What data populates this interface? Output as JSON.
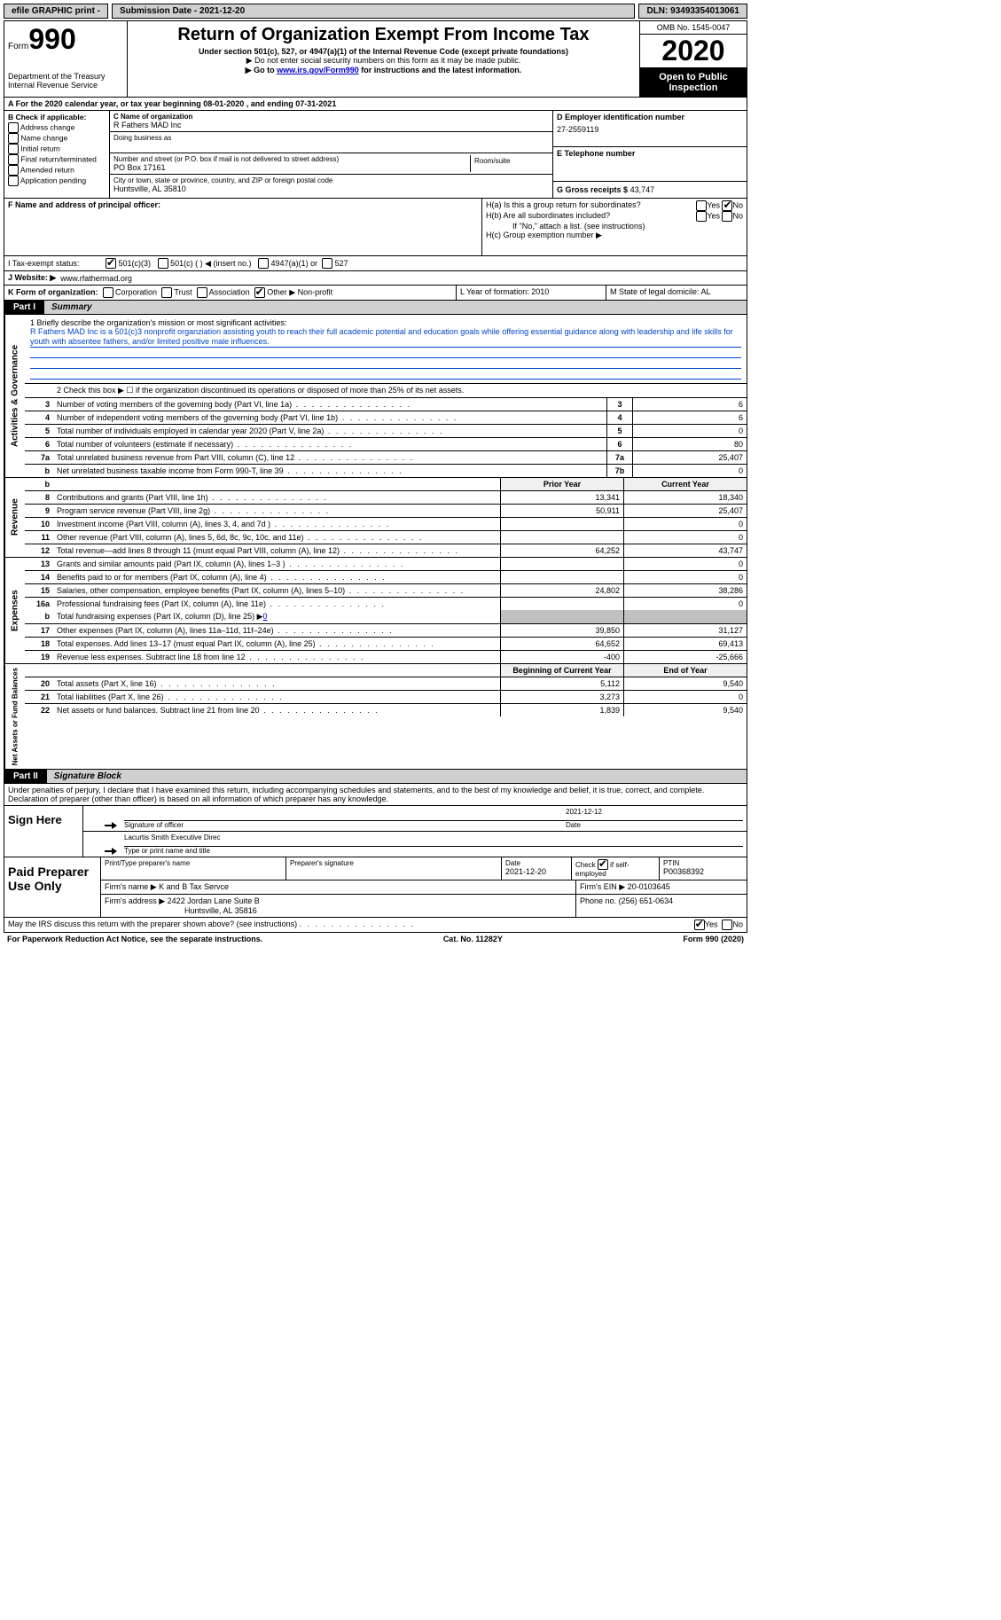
{
  "topbar": {
    "efile": "efile GRAPHIC print -",
    "submission": "Submission Date - 2021-12-20",
    "dln": "DLN: 93493354013061"
  },
  "header": {
    "form_label": "Form",
    "form_number": "990",
    "dept1": "Department of the Treasury",
    "dept2": "Internal Revenue Service",
    "title": "Return of Organization Exempt From Income Tax",
    "subtitle": "Under section 501(c), 527, or 4947(a)(1) of the Internal Revenue Code (except private foundations)",
    "note1": "▶ Do not enter social security numbers on this form as it may be made public.",
    "note2_pre": "▶ Go to ",
    "note2_link": "www.irs.gov/Form990",
    "note2_post": " for instructions and the latest information.",
    "omb": "OMB No. 1545-0047",
    "year": "2020",
    "open": "Open to Public Inspection"
  },
  "line_a": "A For the 2020 calendar year, or tax year beginning 08-01-2020    , and ending 07-31-2021",
  "col_b": {
    "heading": "B Check if applicable:",
    "items": [
      "Address change",
      "Name change",
      "Initial return",
      "Final return/terminated",
      "Amended return",
      "Application pending"
    ]
  },
  "col_c": {
    "name_label": "C Name of organization",
    "name": "R Fathers MAD Inc",
    "dba": "Doing business as",
    "street_label": "Number and street (or P.O. box if mail is not delivered to street address)",
    "room_label": "Room/suite",
    "street": "PO Box 17161",
    "city_label": "City or town, state or province, country, and ZIP or foreign postal code",
    "city": "Huntsville, AL  35810"
  },
  "col_d": {
    "ein_label": "D Employer identification number",
    "ein": "27-2559119",
    "phone_label": "E Telephone number",
    "phone": "",
    "gross_label": "G Gross receipts $",
    "gross": "43,747"
  },
  "f": {
    "label": "F Name and address of principal officer:",
    "value": ""
  },
  "h": {
    "a": "H(a)  Is this a group return for subordinates?",
    "b": "H(b)  Are all subordinates included?",
    "b_note": "If \"No,\" attach a list. (see instructions)",
    "c": "H(c)  Group exemption number ▶",
    "yes": "Yes",
    "no": "No"
  },
  "i": {
    "label": "I    Tax-exempt status:",
    "opt1": "501(c)(3)",
    "opt2": "501(c) (  ) ◀ (insert no.)",
    "opt3": "4947(a)(1) or",
    "opt4": "527"
  },
  "j": {
    "label": "J    Website: ▶",
    "value": "www.rfathermad.org"
  },
  "k": {
    "label": "K Form of organization:",
    "corp": "Corporation",
    "trust": "Trust",
    "assoc": "Association",
    "other": "Other ▶",
    "other_val": "Non-profit",
    "l": "L Year of formation: 2010",
    "m": "M State of legal domicile: AL"
  },
  "part1": {
    "label": "Part I",
    "title": "Summary"
  },
  "mission": {
    "q": "1   Briefly describe the organization's mission or most significant activities:",
    "text": "R Fathers MAD Inc is a 501(c)3 nonprofit organziation assisting youth to reach their full academic potential and education goals while offering essential guidance along with leadership and life skills for youth with absentee fathers, and/or limited positive male influences."
  },
  "gov": {
    "line2": "2    Check this box ▶ ☐  if the organization discontinued its operations or disposed of more than 25% of its net assets.",
    "rows": [
      {
        "n": "3",
        "d": "Number of voting members of the governing body (Part VI, line 1a)",
        "c": "3",
        "v": "6"
      },
      {
        "n": "4",
        "d": "Number of independent voting members of the governing body (Part VI, line 1b)",
        "c": "4",
        "v": "6"
      },
      {
        "n": "5",
        "d": "Total number of individuals employed in calendar year 2020 (Part V, line 2a)",
        "c": "5",
        "v": "0"
      },
      {
        "n": "6",
        "d": "Total number of volunteers (estimate if necessary)",
        "c": "6",
        "v": "80"
      },
      {
        "n": "7a",
        "d": "Total unrelated business revenue from Part VIII, column (C), line 12",
        "c": "7a",
        "v": "25,407"
      },
      {
        "n": "b",
        "d": "Net unrelated business taxable income from Form 990-T, line 39",
        "c": "7b",
        "v": "0"
      }
    ]
  },
  "prior_header": "Prior Year",
  "current_header": "Current Year",
  "revenue": [
    {
      "n": "8",
      "d": "Contributions and grants (Part VIII, line 1h)",
      "p": "13,341",
      "c": "18,340"
    },
    {
      "n": "9",
      "d": "Program service revenue (Part VIII, line 2g)",
      "p": "50,911",
      "c": "25,407"
    },
    {
      "n": "10",
      "d": "Investment income (Part VIII, column (A), lines 3, 4, and 7d )",
      "p": "",
      "c": "0"
    },
    {
      "n": "11",
      "d": "Other revenue (Part VIII, column (A), lines 5, 6d, 8c, 9c, 10c, and 11e)",
      "p": "",
      "c": "0"
    },
    {
      "n": "12",
      "d": "Total revenue—add lines 8 through 11 (must equal Part VIII, column (A), line 12)",
      "p": "64,252",
      "c": "43,747"
    }
  ],
  "expenses": [
    {
      "n": "13",
      "d": "Grants and similar amounts paid (Part IX, column (A), lines 1–3 )",
      "p": "",
      "c": "0"
    },
    {
      "n": "14",
      "d": "Benefits paid to or for members (Part IX, column (A), line 4)",
      "p": "",
      "c": "0"
    },
    {
      "n": "15",
      "d": "Salaries, other compensation, employee benefits (Part IX, column (A), lines 5–10)",
      "p": "24,802",
      "c": "38,286"
    },
    {
      "n": "16a",
      "d": "Professional fundraising fees (Part IX, column (A), line 11e)",
      "p": "",
      "c": "0"
    }
  ],
  "exp16b": {
    "n": "b",
    "d": "Total fundraising expenses (Part IX, column (D), line 25) ▶",
    "v": "0"
  },
  "expenses2": [
    {
      "n": "17",
      "d": "Other expenses (Part IX, column (A), lines 11a–11d, 11f–24e)",
      "p": "39,850",
      "c": "31,127"
    },
    {
      "n": "18",
      "d": "Total expenses. Add lines 13–17 (must equal Part IX, column (A), line 25)",
      "p": "64,652",
      "c": "69,413"
    },
    {
      "n": "19",
      "d": "Revenue less expenses. Subtract line 18 from line 12",
      "p": "-400",
      "c": "-25,666"
    }
  ],
  "bcy_header": "Beginning of Current Year",
  "eoy_header": "End of Year",
  "netassets": [
    {
      "n": "20",
      "d": "Total assets (Part X, line 16)",
      "p": "5,112",
      "c": "9,540"
    },
    {
      "n": "21",
      "d": "Total liabilities (Part X, line 26)",
      "p": "3,273",
      "c": "0"
    },
    {
      "n": "22",
      "d": "Net assets or fund balances. Subtract line 21 from line 20",
      "p": "1,839",
      "c": "9,540"
    }
  ],
  "part2": {
    "label": "Part II",
    "title": "Signature Block"
  },
  "sig_declaration": "Under penalties of perjury, I declare that I have examined this return, including accompanying schedules and statements, and to the best of my knowledge and belief, it is true, correct, and complete. Declaration of preparer (other than officer) is based on all information of which preparer has any knowledge.",
  "sign": {
    "here": "Sign Here",
    "sig_of_officer": "Signature of officer",
    "date": "Date",
    "date_val": "2021-12-12",
    "name": "Lacurtis Smith  Executive Direc",
    "name_label": "Type or print name and title"
  },
  "paid": {
    "label": "Paid Preparer Use Only",
    "ptname": "Print/Type preparer's name",
    "psig": "Preparer's signature",
    "pdate_label": "Date",
    "pdate": "2021-12-20",
    "check_label": "Check ☑ if self-employed",
    "ptin_label": "PTIN",
    "ptin": "P00368392",
    "firm_name_label": "Firm's name     ▶",
    "firm_name": "K and B Tax Servce",
    "firm_ein_label": "Firm's EIN ▶",
    "firm_ein": "20-0103645",
    "firm_addr_label": "Firm's address ▶",
    "firm_addr1": "2422 Jordan Lane Suite B",
    "firm_addr2": "Huntsville, AL  35816",
    "phone_label": "Phone no.",
    "phone": "(256) 651-0634"
  },
  "may_irs": "May the IRS discuss this return with the preparer shown above? (see instructions)",
  "footer": {
    "pra": "For Paperwork Reduction Act Notice, see the separate instructions.",
    "cat": "Cat. No. 11282Y",
    "form": "Form 990 (2020)"
  },
  "vtabs": {
    "gov": "Activities & Governance",
    "rev": "Revenue",
    "exp": "Expenses",
    "net": "Net Assets or Fund Balances"
  }
}
